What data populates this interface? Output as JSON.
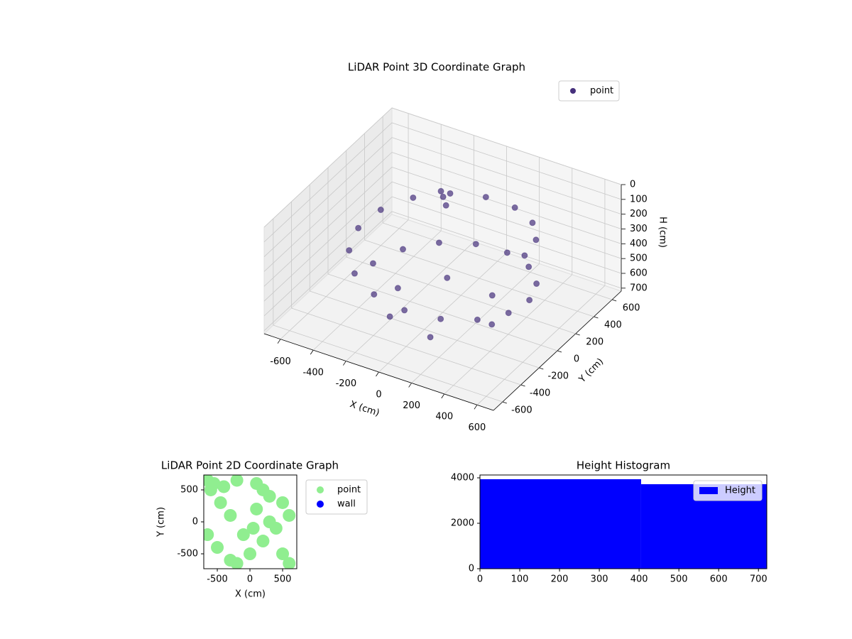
{
  "chart_data": [
    {
      "type": "scatter3d",
      "title": "LiDAR Point 3D Coordinate Graph",
      "xlabel": "X (cm)",
      "ylabel": "Y (cm)",
      "zlabel": "H (cm)",
      "xlim": [
        -700,
        700
      ],
      "ylim": [
        -700,
        700
      ],
      "zlim": [
        0,
        720
      ],
      "z_inverted": true,
      "xticks": [
        -600,
        -400,
        -200,
        0,
        200,
        400,
        600
      ],
      "yticks": [
        -600,
        -400,
        -200,
        0,
        200,
        400,
        600
      ],
      "zticks": [
        0,
        100,
        200,
        300,
        400,
        500,
        600,
        700
      ],
      "grid": true,
      "legend": "upper right",
      "series": [
        {
          "name": "point",
          "color": "#46307c",
          "x": [
            500,
            461,
            348,
            181,
            -15,
            -208,
            -369,
            -471,
            -499,
            -448,
            -327,
            -154,
            44,
            234,
            388,
            480,
            497,
            435,
            304,
            124,
            -73,
            -260,
            -406,
            -487,
            300,
            162,
            -125,
            -297,
            -196,
            85,
            -120,
            -80,
            -150
          ],
          "y": [
            0,
            195,
            359,
            466,
            500,
            455,
            338,
            167,
            -29,
            -221,
            -378,
            -476,
            -498,
            -442,
            -316,
            -140,
            58,
            247,
            397,
            484,
            495,
            427,
            293,
            111,
            0,
            252,
            273,
            42,
            -227,
            -288,
            220,
            180,
            250
          ],
          "z": [
            150,
            171,
            192,
            213,
            234,
            255,
            276,
            297,
            318,
            339,
            360,
            381,
            402,
            423,
            444,
            465,
            486,
            507,
            528,
            549,
            570,
            591,
            612,
            633,
            690,
            690,
            690,
            690,
            690,
            690,
            110,
            130,
            100
          ]
        }
      ]
    },
    {
      "type": "scatter",
      "title": "LiDAR Point 2D Coordinate Graph",
      "xlabel": "X (cm)",
      "ylabel": "Y (cm)",
      "xlim": [
        -707,
        717
      ],
      "ylim": [
        -733,
        733
      ],
      "xticks": [
        -500,
        0,
        500
      ],
      "yticks": [
        -500,
        0,
        500
      ],
      "legend": "outside upper right",
      "series": [
        {
          "name": "point",
          "color": "#90ee90",
          "x": [
            -650,
            -550,
            -400,
            -200,
            100,
            300,
            500,
            600,
            400,
            200,
            0,
            -300,
            -500,
            -650,
            -600,
            -450,
            100,
            300,
            -100,
            500,
            600,
            -200,
            50,
            200,
            -300
          ],
          "y": [
            650,
            600,
            550,
            650,
            600,
            400,
            300,
            100,
            -100,
            -300,
            -500,
            -600,
            -400,
            -200,
            500,
            300,
            200,
            0,
            -200,
            -500,
            -650,
            -650,
            -100,
            500,
            100
          ]
        },
        {
          "name": "wall",
          "color": "#0000ff",
          "x": [],
          "y": []
        }
      ]
    },
    {
      "type": "histogram",
      "title": "Height Histogram",
      "bins": [
        0,
        405,
        721
      ],
      "counts": [
        3940,
        3720
      ],
      "xlim": [
        0,
        721
      ],
      "ylim": [
        0,
        4125
      ],
      "xticks": [
        0,
        100,
        200,
        300,
        400,
        500,
        600,
        700
      ],
      "yticks": [
        0,
        2000,
        4000
      ],
      "legend": "upper right",
      "series_name": "Height",
      "color": "#0000ff"
    }
  ]
}
